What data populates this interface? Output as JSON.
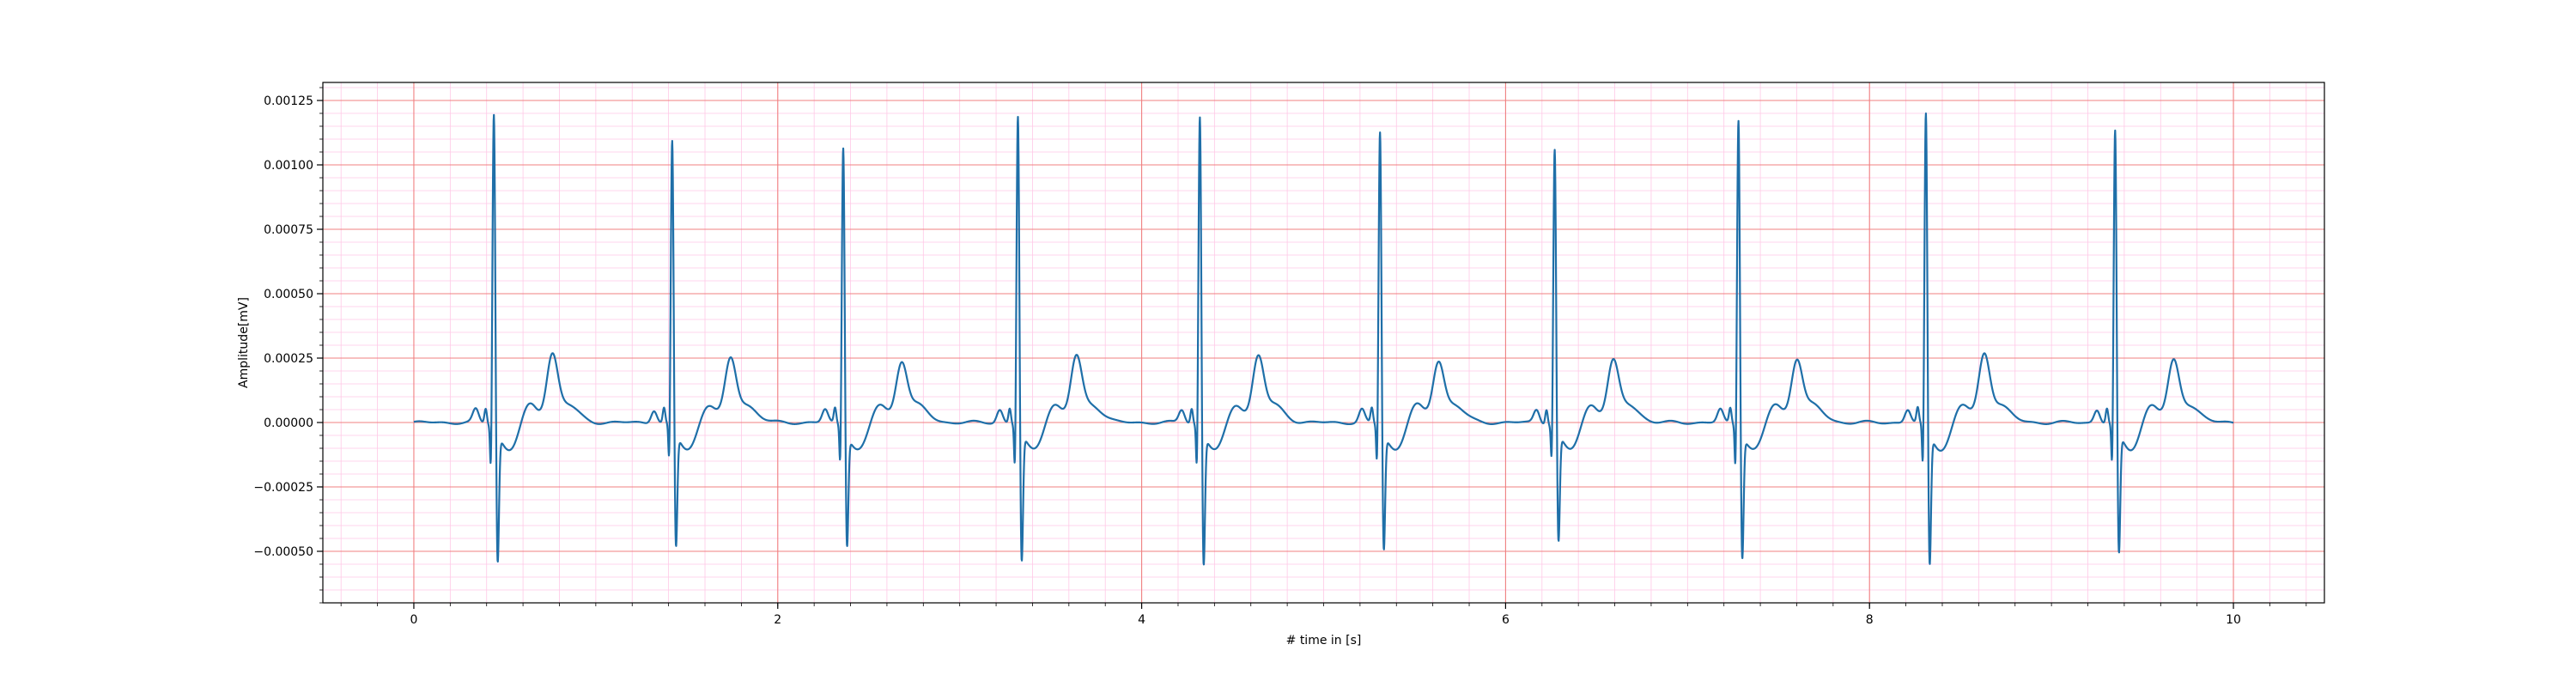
{
  "chart_data": {
    "type": "line",
    "title": "",
    "xlabel": "# time in [s]",
    "ylabel": "Amplitude[mV]",
    "xlim": [
      -0.5,
      10.5
    ],
    "ylim": [
      -0.0007,
      0.00132
    ],
    "x_ticks": [
      0,
      2,
      4,
      6,
      8,
      10
    ],
    "x_tick_labels": [
      "0",
      "2",
      "4",
      "6",
      "8",
      "10"
    ],
    "y_ticks": [
      -0.0005,
      -0.00025,
      0,
      0.00025,
      0.0005,
      0.00075,
      0.001,
      0.00125
    ],
    "y_tick_labels": [
      "−0.00050",
      "−0.00025",
      "0.00000",
      "0.00025",
      "0.00050",
      "0.00075",
      "0.00100",
      "0.00125"
    ],
    "grid": {
      "major": true,
      "minor": true,
      "major_color": "#f08080",
      "minor_color": "#ffc8e6"
    },
    "line_color": "#1f6fa8",
    "x_range": [
      0,
      10
    ],
    "series": [
      {
        "beats": [
          {
            "t": 0.44,
            "r": 0.00124,
            "q": -0.0003,
            "s": -0.00062,
            "t_wave": 0.00019
          },
          {
            "t": 1.42,
            "r": 0.00113,
            "q": -0.00027,
            "s": -0.00056,
            "t_wave": 0.00017
          },
          {
            "t": 2.36,
            "r": 0.00111,
            "q": -0.00028,
            "s": -0.00055,
            "t_wave": 0.00016
          },
          {
            "t": 3.32,
            "r": 0.00123,
            "q": -0.0003,
            "s": -0.00062,
            "t_wave": 0.00018
          },
          {
            "t": 4.32,
            "r": 0.00123,
            "q": -0.0003,
            "s": -0.00063,
            "t_wave": 0.00018
          },
          {
            "t": 5.31,
            "r": 0.00117,
            "q": -0.00028,
            "s": -0.00057,
            "t_wave": 0.00016
          },
          {
            "t": 6.27,
            "r": 0.0011,
            "q": -0.00026,
            "s": -0.00054,
            "t_wave": 0.00016
          },
          {
            "t": 7.28,
            "r": 0.00122,
            "q": -0.0003,
            "s": -0.0006,
            "t_wave": 0.00017
          },
          {
            "t": 8.31,
            "r": 0.00124,
            "q": -0.0003,
            "s": -0.00063,
            "t_wave": 0.00019
          },
          {
            "t": 9.35,
            "r": 0.00117,
            "q": -0.00029,
            "s": -0.00059,
            "t_wave": 0.00016
          }
        ]
      }
    ]
  }
}
